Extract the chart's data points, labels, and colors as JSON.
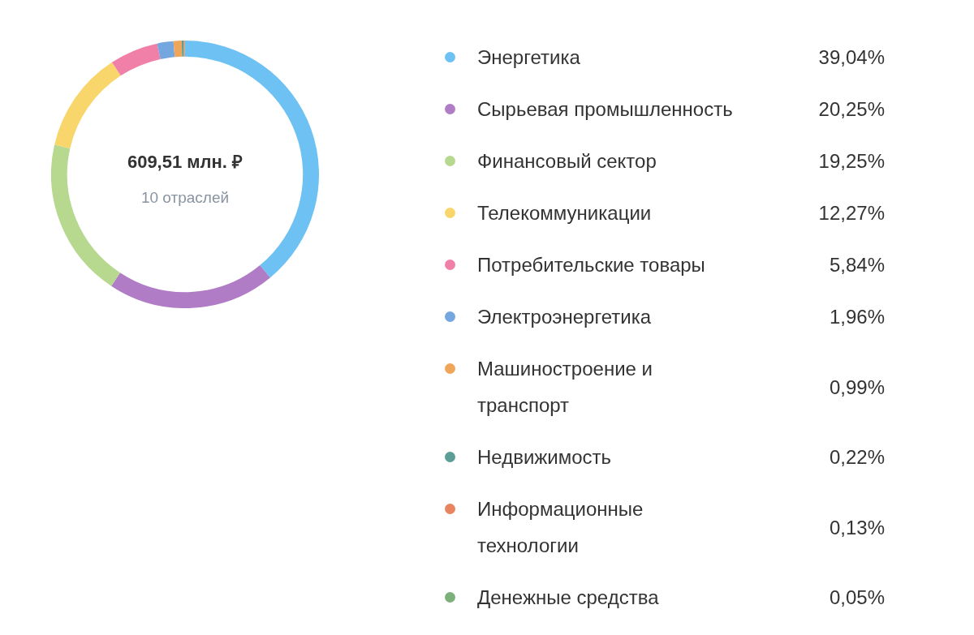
{
  "chart_data": {
    "type": "donut",
    "title": "609,51 млн. ₽",
    "subtitle": "10 отраслей",
    "categories": [
      "Энергетика",
      "Сырьевая промышленность",
      "Финансовый сектор",
      "Телекоммуникации",
      "Потребительские товары",
      "Электроэнергетика",
      "Машиностроение и транспорт",
      "Недвижимость",
      "Информационные технологии",
      "Денежные средства"
    ],
    "values": [
      39.04,
      20.25,
      19.25,
      12.27,
      5.84,
      1.96,
      0.99,
      0.22,
      0.13,
      0.05
    ],
    "value_labels": [
      "39,04%",
      "20,25%",
      "19,25%",
      "12,27%",
      "5,84%",
      "1,96%",
      "0,99%",
      "0,22%",
      "0,13%",
      "0,05%"
    ],
    "colors": [
      "#6ec1f3",
      "#b07cc6",
      "#b7d88f",
      "#f9d66b",
      "#f080a8",
      "#74a6df",
      "#f0a65a",
      "#5c9e95",
      "#e8845f",
      "#7bb07a"
    ],
    "legend": "right"
  }
}
